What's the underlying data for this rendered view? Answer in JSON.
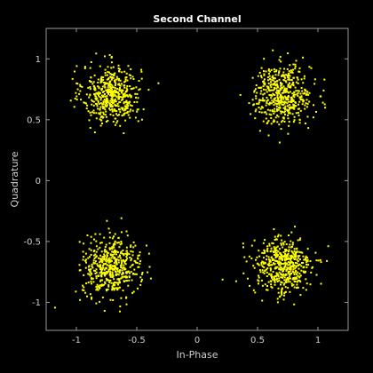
{
  "chart_data": {
    "type": "scatter",
    "title": "Second Channel",
    "xlabel": "In-Phase",
    "ylabel": "Quadrature",
    "xlim": [
      -1.25,
      1.25
    ],
    "ylim": [
      -1.23,
      1.25
    ],
    "xticks": [
      -1,
      -0.5,
      0,
      0.5,
      1
    ],
    "xtick_labels": [
      "-1",
      "-0.5",
      "0",
      "0.5",
      "1"
    ],
    "yticks": [
      -1,
      -0.5,
      0,
      0.5,
      1
    ],
    "ytick_labels": [
      "-1",
      "-0.5",
      "0",
      "0.5",
      "1"
    ],
    "grid": false,
    "background": "#000000",
    "axes_color": "#9a9a9a",
    "point_color": "#ffff00",
    "clusters": [
      {
        "center": [
          -0.707,
          0.707
        ],
        "spread": 0.12,
        "approx_points": 500
      },
      {
        "center": [
          0.707,
          0.707
        ],
        "spread": 0.12,
        "approx_points": 500
      },
      {
        "center": [
          -0.707,
          -0.707
        ],
        "spread": 0.12,
        "approx_points": 500
      },
      {
        "center": [
          0.707,
          -0.707
        ],
        "spread": 0.12,
        "approx_points": 500
      }
    ]
  }
}
